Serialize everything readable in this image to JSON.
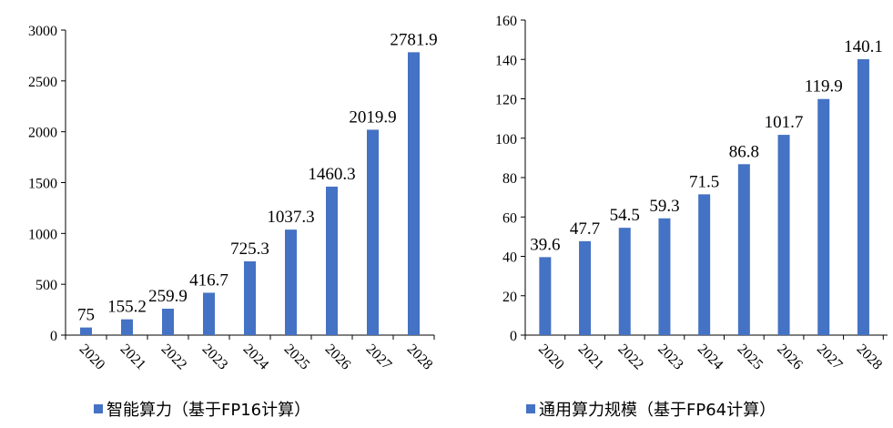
{
  "chart_data": [
    {
      "type": "bar",
      "categories": [
        "2020",
        "2021",
        "2022",
        "2023",
        "2024",
        "2025",
        "2026",
        "2027",
        "2028"
      ],
      "series": [
        {
          "name": "智能算力（基于FP16计算）",
          "values": [
            75,
            155.2,
            259.9,
            416.7,
            725.3,
            1037.3,
            1460.3,
            2019.9,
            2781.9
          ]
        }
      ],
      "ylim": [
        0,
        3000
      ],
      "yticks": [
        0,
        500,
        1000,
        1500,
        2000,
        2500,
        3000
      ],
      "color": "#4472C4",
      "legend_position": "bottom",
      "grid": false
    },
    {
      "type": "bar",
      "categories": [
        "2020",
        "2021",
        "2022",
        "2023",
        "2024",
        "2025",
        "2026",
        "2027",
        "2028"
      ],
      "series": [
        {
          "name": "通用算力规模（基于FP64计算）",
          "values": [
            39.6,
            47.7,
            54.5,
            59.3,
            71.5,
            86.8,
            101.7,
            119.9,
            140.1
          ]
        }
      ],
      "ylim": [
        0,
        160
      ],
      "yticks": [
        0,
        20,
        40,
        60,
        80,
        100,
        120,
        140,
        160
      ],
      "color": "#4472C4",
      "legend_position": "bottom",
      "grid": false
    }
  ]
}
